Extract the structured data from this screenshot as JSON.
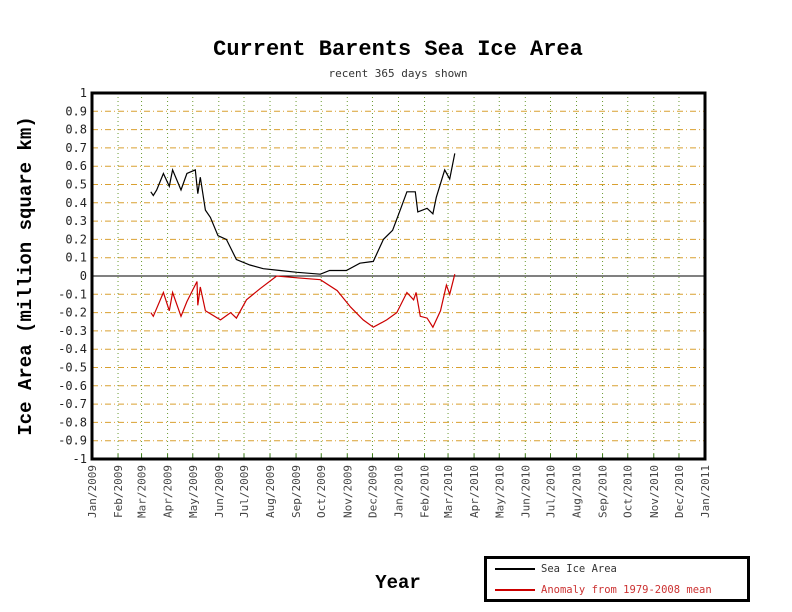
{
  "chart_data": {
    "type": "line",
    "title": "Current Barents Sea Ice Area",
    "subtitle": "recent 365 days shown",
    "xlabel": "Year",
    "ylabel": "Ice Area (million square km)",
    "ylim": [
      -1,
      1
    ],
    "x_unit": "days since Jan 1 2009",
    "xlim": [
      0,
      730
    ],
    "grid": true,
    "legend_position": "bottom-right",
    "y_ticks": [
      "1",
      "0.9",
      "0.8",
      "0.7",
      "0.6",
      "0.5",
      "0.4",
      "0.3",
      "0.2",
      "0.1",
      "0",
      "-0.1",
      "-0.2",
      "-0.3",
      "-0.4",
      "-0.5",
      "-0.6",
      "-0.7",
      "-0.8",
      "-0.9",
      "-1"
    ],
    "x_ticks": [
      "Jan/2009",
      "Feb/2009",
      "Mar/2009",
      "Apr/2009",
      "May/2009",
      "Jun/2009",
      "Jul/2009",
      "Aug/2009",
      "Sep/2009",
      "Oct/2009",
      "Nov/2009",
      "Dec/2009",
      "Jan/2010",
      "Feb/2010",
      "Mar/2010",
      "Apr/2010",
      "May/2010",
      "Jun/2010",
      "Jul/2010",
      "Aug/2010",
      "Sep/2010",
      "Oct/2010",
      "Nov/2010",
      "Dec/2010",
      "Jan/2011"
    ],
    "x_tick_days": [
      0,
      31,
      59,
      90,
      120,
      151,
      181,
      212,
      243,
      273,
      304,
      334,
      365,
      396,
      424,
      455,
      485,
      516,
      546,
      577,
      608,
      638,
      669,
      699,
      730
    ],
    "series": [
      {
        "name": "Sea Ice Area",
        "color": "#000000",
        "x": [
          70,
          73,
          77,
          85,
          92,
          96,
          106,
          113,
          123,
          126,
          129,
          135,
          141,
          150,
          160,
          172,
          188,
          204,
          224,
          244,
          272,
          283,
          303,
          319,
          335,
          347,
          358,
          367,
          375,
          385,
          388,
          399,
          406,
          410,
          420,
          426,
          432
        ],
        "y": [
          0.46,
          0.44,
          0.47,
          0.56,
          0.49,
          0.58,
          0.47,
          0.56,
          0.58,
          0.45,
          0.54,
          0.36,
          0.32,
          0.22,
          0.2,
          0.09,
          0.06,
          0.04,
          0.03,
          0.02,
          0.01,
          0.03,
          0.03,
          0.07,
          0.08,
          0.2,
          0.25,
          0.36,
          0.46,
          0.46,
          0.35,
          0.37,
          0.34,
          0.43,
          0.58,
          0.53,
          0.67
        ]
      },
      {
        "name": "Anomaly from 1979-2008 mean",
        "color": "#cc0000",
        "x": [
          70,
          73,
          85,
          92,
          96,
          106,
          113,
          125,
          126,
          129,
          135,
          153,
          165,
          172,
          184,
          200,
          220,
          244,
          272,
          292,
          308,
          323,
          335,
          351,
          363,
          375,
          383,
          386,
          391,
          399,
          406,
          415,
          422,
          426,
          432
        ],
        "y": [
          -0.2,
          -0.22,
          -0.09,
          -0.19,
          -0.09,
          -0.22,
          -0.14,
          -0.03,
          -0.16,
          -0.06,
          -0.19,
          -0.24,
          -0.2,
          -0.23,
          -0.13,
          -0.07,
          0.0,
          -0.01,
          -0.02,
          -0.08,
          -0.17,
          -0.24,
          -0.28,
          -0.24,
          -0.2,
          -0.09,
          -0.13,
          -0.09,
          -0.22,
          -0.23,
          -0.28,
          -0.19,
          -0.05,
          -0.1,
          0.01
        ]
      }
    ]
  }
}
